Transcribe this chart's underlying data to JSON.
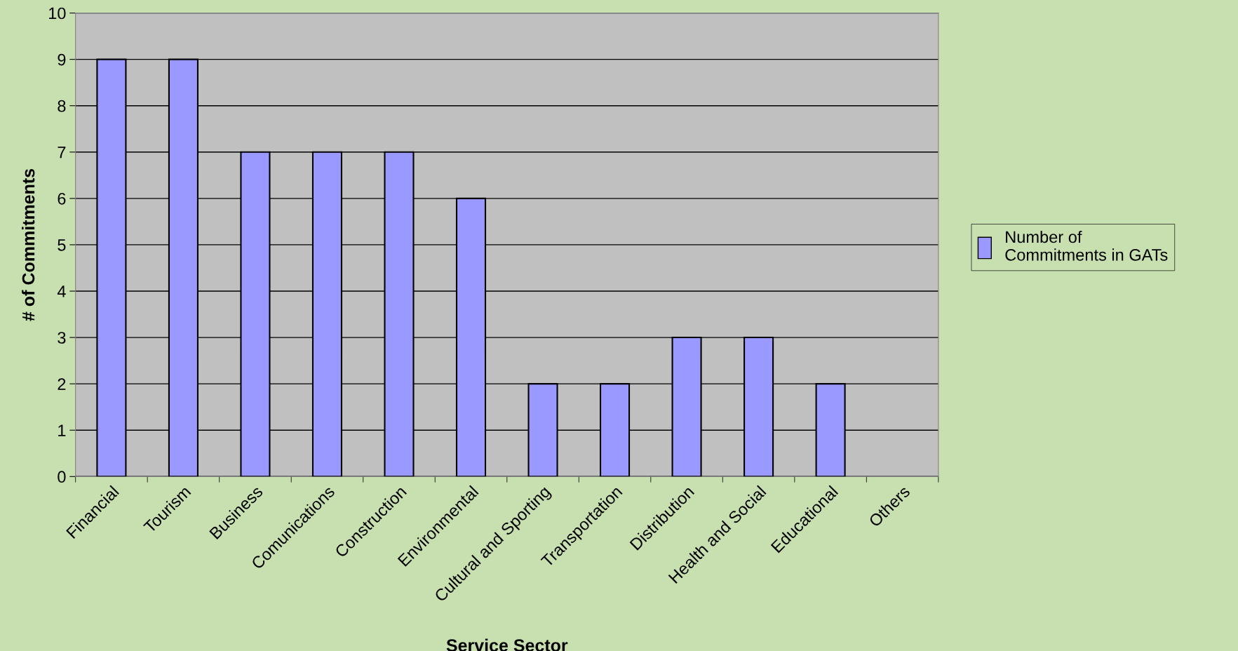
{
  "chart_data": {
    "type": "bar",
    "xlabel": "Service Sector",
    "ylabel": "# of Commitments",
    "categories": [
      "Financial",
      "Tourism",
      "Business",
      "Comunications",
      "Construction",
      "Environmental",
      "Cultural and Sporting",
      "Transportation",
      "Distribution",
      "Health and Social",
      "Educational",
      "Others"
    ],
    "series": [
      {
        "name": "Number of Commitments in GATs",
        "color": "#9999ff",
        "values": [
          9,
          9,
          7,
          7,
          7,
          6,
          2,
          2,
          3,
          3,
          2,
          null
        ]
      }
    ],
    "ylim": [
      0,
      10
    ],
    "yticks": [
      0,
      1,
      2,
      3,
      4,
      5,
      6,
      7,
      8,
      9,
      10
    ],
    "grid": "y",
    "legend": "right"
  }
}
